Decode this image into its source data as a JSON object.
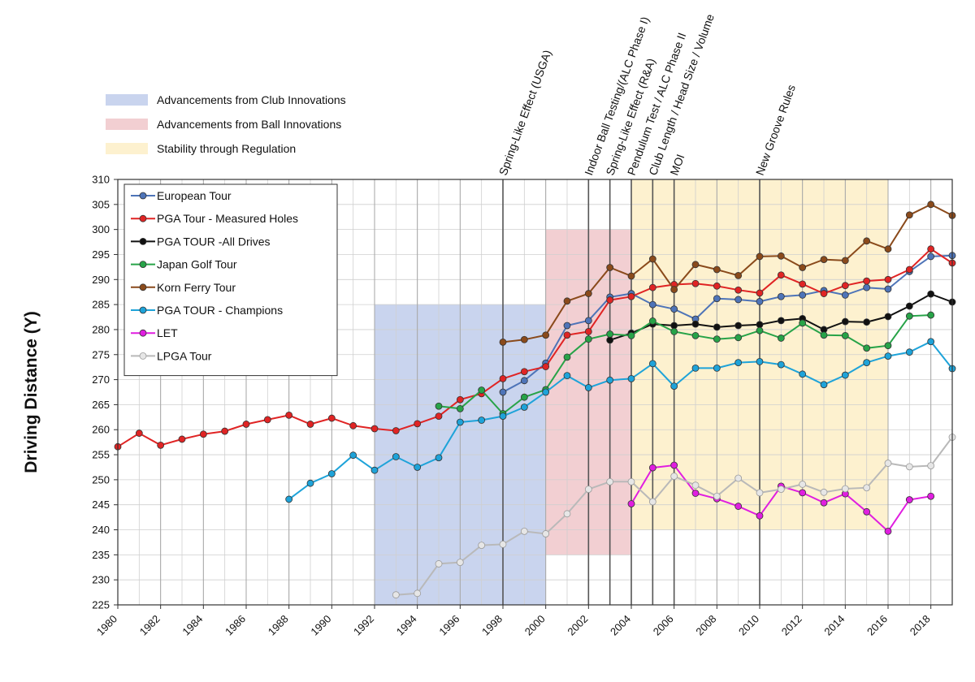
{
  "chart_data": {
    "type": "line",
    "ylabel": "Driving Distance (Y)",
    "xlim": [
      1980,
      2019
    ],
    "ylim": [
      225,
      310
    ],
    "x_ticks": [
      "1980",
      "1982",
      "1984",
      "1986",
      "1988",
      "1990",
      "1992",
      "1994",
      "1996",
      "1998",
      "2000",
      "2002",
      "2004",
      "2006",
      "2008",
      "2010",
      "2012",
      "2014",
      "2016",
      "2018"
    ],
    "y_ticks": [
      "225",
      "230",
      "235",
      "240",
      "245",
      "250",
      "255",
      "260",
      "265",
      "270",
      "275",
      "280",
      "285",
      "290",
      "295",
      "300",
      "305",
      "310"
    ],
    "grid": true,
    "legend_position": "top-left",
    "region_legend": [
      {
        "label": "Advancements from Club Innovations",
        "color": "#c9d4ee"
      },
      {
        "label": "Advancements from Ball Innovations",
        "color": "#f2cfd2"
      },
      {
        "label": "Stability through Regulation",
        "color": "#fdf1cf"
      }
    ],
    "regions": [
      {
        "x_start": 1992,
        "x_end": 2000,
        "y_start": 225,
        "y_end": 285,
        "color": "#c9d4ee"
      },
      {
        "x_start": 2000,
        "x_end": 2004,
        "y_start": 235,
        "y_end": 300,
        "color": "#f2cfd2"
      },
      {
        "x_start": 2004,
        "x_end": 2016,
        "y_start": 240,
        "y_end": 310,
        "color": "#fdf1cf"
      }
    ],
    "annotations": [
      {
        "x": 1998,
        "text": "Spring-Like Effect (USGA)"
      },
      {
        "x": 2002,
        "text": "Indoor Ball Testing/(ALC Phase I)"
      },
      {
        "x": 2003,
        "text": "Spring-Like Effect (R&A)"
      },
      {
        "x": 2004,
        "text": "Pendulum Test / ALC Phase II"
      },
      {
        "x": 2005,
        "text": "Club Length / Head Size / Volume"
      },
      {
        "x": 2006,
        "text": "MOI"
      },
      {
        "x": 2010,
        "text": "New Groove Rules"
      }
    ],
    "series": [
      {
        "name": "European Tour",
        "color": "#4e74b8",
        "points": [
          [
            1998,
            267.5
          ],
          [
            1999,
            269.8
          ],
          [
            2000,
            273.3
          ],
          [
            2001,
            280.8
          ],
          [
            2002,
            281.8
          ],
          [
            2003,
            286.5
          ],
          [
            2004,
            287.2
          ],
          [
            2005,
            285.0
          ],
          [
            2006,
            284.1
          ],
          [
            2007,
            282.1
          ],
          [
            2008,
            286.2
          ],
          [
            2009,
            286.0
          ],
          [
            2010,
            285.6
          ],
          [
            2011,
            286.6
          ],
          [
            2012,
            286.9
          ],
          [
            2013,
            287.8
          ],
          [
            2014,
            286.9
          ],
          [
            2015,
            288.4
          ],
          [
            2016,
            288.1
          ],
          [
            2017,
            291.6
          ],
          [
            2018,
            294.6
          ],
          [
            2019,
            294.8
          ]
        ]
      },
      {
        "name": "PGA Tour - Measured Holes",
        "color": "#e02424",
        "points": [
          [
            1980,
            256.6
          ],
          [
            1981,
            259.3
          ],
          [
            1982,
            256.9
          ],
          [
            1983,
            258.1
          ],
          [
            1984,
            259.1
          ],
          [
            1985,
            259.7
          ],
          [
            1986,
            261.1
          ],
          [
            1987,
            262.0
          ],
          [
            1988,
            262.9
          ],
          [
            1989,
            261.1
          ],
          [
            1990,
            262.3
          ],
          [
            1991,
            260.8
          ],
          [
            1992,
            260.2
          ],
          [
            1993,
            259.8
          ],
          [
            1994,
            261.2
          ],
          [
            1995,
            262.7
          ],
          [
            1996,
            266.0
          ],
          [
            1997,
            267.2
          ],
          [
            1998,
            270.2
          ],
          [
            1999,
            271.6
          ],
          [
            2000,
            272.6
          ],
          [
            2001,
            278.9
          ],
          [
            2002,
            279.6
          ],
          [
            2003,
            285.9
          ],
          [
            2004,
            286.6
          ],
          [
            2005,
            288.4
          ],
          [
            2006,
            289.0
          ],
          [
            2007,
            289.2
          ],
          [
            2008,
            288.7
          ],
          [
            2009,
            287.9
          ],
          [
            2010,
            287.3
          ],
          [
            2011,
            290.9
          ],
          [
            2012,
            289.1
          ],
          [
            2013,
            287.2
          ],
          [
            2014,
            288.8
          ],
          [
            2015,
            289.7
          ],
          [
            2016,
            290.0
          ],
          [
            2017,
            292.0
          ],
          [
            2018,
            296.1
          ],
          [
            2019,
            293.3
          ]
        ]
      },
      {
        "name": "PGA TOUR -All Drives",
        "color": "#111111",
        "points": [
          [
            2003,
            277.9
          ],
          [
            2004,
            279.3
          ],
          [
            2005,
            281.1
          ],
          [
            2006,
            280.8
          ],
          [
            2007,
            281.1
          ],
          [
            2008,
            280.5
          ],
          [
            2009,
            280.8
          ],
          [
            2010,
            281.0
          ],
          [
            2011,
            281.8
          ],
          [
            2012,
            282.2
          ],
          [
            2013,
            280.0
          ],
          [
            2014,
            281.6
          ],
          [
            2015,
            281.5
          ],
          [
            2016,
            282.6
          ],
          [
            2017,
            284.7
          ],
          [
            2018,
            287.1
          ],
          [
            2019,
            285.5
          ]
        ]
      },
      {
        "name": "Japan Golf Tour",
        "color": "#27a348",
        "points": [
          [
            1995,
            264.7
          ],
          [
            1996,
            264.2
          ],
          [
            1997,
            267.9
          ],
          [
            1998,
            263.2
          ],
          [
            1999,
            266.5
          ],
          [
            2000,
            268.0
          ],
          [
            2001,
            274.5
          ],
          [
            2002,
            278.1
          ],
          [
            2003,
            279.1
          ],
          [
            2004,
            278.8
          ],
          [
            2005,
            281.7
          ],
          [
            2006,
            279.6
          ],
          [
            2007,
            278.8
          ],
          [
            2008,
            278.1
          ],
          [
            2009,
            278.4
          ],
          [
            2010,
            279.8
          ],
          [
            2011,
            278.3
          ],
          [
            2012,
            281.3
          ],
          [
            2013,
            278.9
          ],
          [
            2014,
            278.8
          ],
          [
            2015,
            276.3
          ],
          [
            2016,
            276.8
          ],
          [
            2017,
            282.7
          ],
          [
            2018,
            282.9
          ]
        ]
      },
      {
        "name": "Korn Ferry Tour",
        "color": "#8a4a1b",
        "points": [
          [
            1998,
            277.5
          ],
          [
            1999,
            278.0
          ],
          [
            2000,
            278.9
          ],
          [
            2001,
            285.7
          ],
          [
            2002,
            287.2
          ],
          [
            2003,
            292.4
          ],
          [
            2004,
            290.7
          ],
          [
            2005,
            294.1
          ],
          [
            2006,
            288.0
          ],
          [
            2007,
            293.0
          ],
          [
            2008,
            292.0
          ],
          [
            2009,
            290.8
          ],
          [
            2010,
            294.6
          ],
          [
            2011,
            294.7
          ],
          [
            2012,
            292.4
          ],
          [
            2013,
            294.0
          ],
          [
            2014,
            293.8
          ],
          [
            2015,
            297.7
          ],
          [
            2016,
            296.1
          ],
          [
            2017,
            302.9
          ],
          [
            2018,
            305.0
          ],
          [
            2019,
            302.8
          ]
        ]
      },
      {
        "name": "PGA TOUR - Champions",
        "color": "#1ea3d9",
        "points": [
          [
            1988,
            246.1
          ],
          [
            1989,
            249.3
          ],
          [
            1990,
            251.2
          ],
          [
            1991,
            254.9
          ],
          [
            1992,
            251.9
          ],
          [
            1993,
            254.6
          ],
          [
            1994,
            252.5
          ],
          [
            1995,
            254.4
          ],
          [
            1996,
            261.5
          ],
          [
            1997,
            261.9
          ],
          [
            1998,
            262.7
          ],
          [
            1999,
            264.5
          ],
          [
            2000,
            267.5
          ],
          [
            2001,
            270.8
          ],
          [
            2002,
            268.4
          ],
          [
            2003,
            269.9
          ],
          [
            2004,
            270.2
          ],
          [
            2005,
            273.2
          ],
          [
            2006,
            268.7
          ],
          [
            2007,
            272.3
          ],
          [
            2008,
            272.3
          ],
          [
            2009,
            273.4
          ],
          [
            2010,
            273.6
          ],
          [
            2011,
            273.0
          ],
          [
            2012,
            271.1
          ],
          [
            2013,
            269.0
          ],
          [
            2014,
            270.9
          ],
          [
            2015,
            273.4
          ],
          [
            2016,
            274.7
          ],
          [
            2017,
            275.5
          ],
          [
            2018,
            277.6
          ],
          [
            2019,
            272.2
          ]
        ]
      },
      {
        "name": "LET",
        "color": "#e01ee0",
        "points": [
          [
            2004,
            245.2
          ],
          [
            2005,
            252.4
          ],
          [
            2006,
            252.9
          ],
          [
            2007,
            247.3
          ],
          [
            2008,
            246.2
          ],
          [
            2009,
            244.7
          ],
          [
            2010,
            242.8
          ],
          [
            2011,
            248.7
          ],
          [
            2012,
            247.4
          ],
          [
            2013,
            245.4
          ],
          [
            2014,
            247.2
          ],
          [
            2015,
            243.6
          ],
          [
            2016,
            239.7
          ],
          [
            2017,
            246.0
          ],
          [
            2018,
            246.7
          ]
        ]
      },
      {
        "name": "LPGA Tour",
        "color": "#b9b9b9",
        "points": [
          [
            1993,
            227.0
          ],
          [
            1994,
            227.3
          ],
          [
            1995,
            233.2
          ],
          [
            1996,
            233.5
          ],
          [
            1997,
            236.9
          ],
          [
            1998,
            237.1
          ],
          [
            1999,
            239.7
          ],
          [
            2000,
            239.2
          ],
          [
            2001,
            243.2
          ],
          [
            2002,
            248.1
          ],
          [
            2003,
            249.6
          ],
          [
            2004,
            249.6
          ],
          [
            2005,
            245.6
          ],
          [
            2006,
            250.7
          ],
          [
            2007,
            248.9
          ],
          [
            2008,
            246.7
          ],
          [
            2009,
            250.3
          ],
          [
            2010,
            247.4
          ],
          [
            2011,
            248.1
          ],
          [
            2012,
            249.1
          ],
          [
            2013,
            247.5
          ],
          [
            2014,
            248.2
          ],
          [
            2015,
            248.4
          ],
          [
            2016,
            253.3
          ],
          [
            2017,
            252.6
          ],
          [
            2018,
            252.8
          ],
          [
            2019,
            258.5
          ]
        ]
      }
    ]
  }
}
